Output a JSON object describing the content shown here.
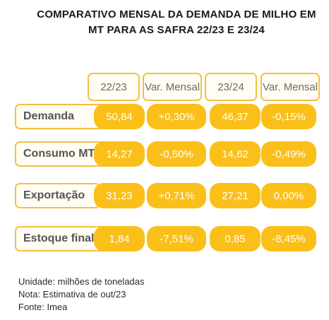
{
  "chart_data": {
    "type": "table",
    "title": "COMPARATIVO MENSAL DA DEMANDA DE MILHO EM MT PARA AS SAFRA 22/23 E 23/24",
    "columns": [
      "22/23",
      "Var. Mensal",
      "23/24",
      "Var. Mensal"
    ],
    "rows": [
      {
        "label": "Demanda",
        "values": [
          "50,84",
          "+0,30%",
          "46,37",
          "-0,15%"
        ]
      },
      {
        "label": "Consumo MT",
        "values": [
          "14,27",
          "-0,50%",
          "14,62",
          "-0,49%"
        ]
      },
      {
        "label": "Exportação",
        "values": [
          "31,23",
          "+0,71%",
          "27,21",
          "0,00%"
        ]
      },
      {
        "label": "Estoque final",
        "values": [
          "1,84",
          "-7,51%",
          "0,85",
          "-8,45%"
        ]
      }
    ],
    "notes": [
      "Unidade: milhões de toneladas",
      "Nota: Estimativa de out/23",
      "Fonte: Imea"
    ]
  },
  "colors": {
    "accent": "#fbbf1a",
    "border": "#f5c042"
  }
}
